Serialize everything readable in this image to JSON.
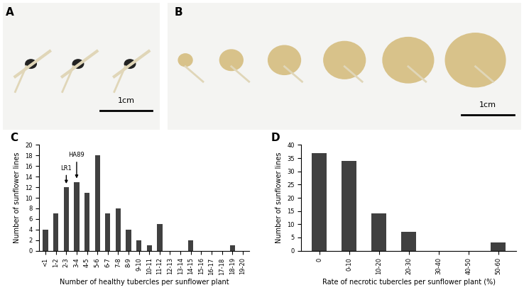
{
  "photos": [
    {
      "label": "A",
      "scale_bar": "1cm"
    },
    {
      "label": "B",
      "scale_bar": "1cm"
    }
  ],
  "chart_data": [
    {
      "type": "bar",
      "title": "C",
      "categories": [
        "<1",
        "1-2",
        "2-3",
        "3-4",
        "4-5",
        "5-6",
        "6-7",
        "7-8",
        "8-9",
        "9-10",
        "10-11",
        "11-12",
        "12-13",
        "13-14",
        "14-15",
        "15-16",
        "16-17",
        "17-18",
        "18-19",
        "19-20"
      ],
      "values": [
        4,
        7,
        12,
        13,
        11,
        18,
        7,
        8,
        4,
        2,
        1,
        5,
        0,
        0,
        2,
        0,
        0,
        0,
        1,
        0
      ],
      "x_label": "Number of healthy tubercles per sunflower plant",
      "y_label": "Number of sunflower lines",
      "ylim": [
        0,
        20
      ],
      "yticks": [
        0,
        2,
        4,
        6,
        8,
        10,
        12,
        14,
        16,
        18,
        20
      ],
      "color": "#404040",
      "annotations": [
        {
          "text": "LR1",
          "category": "2-3"
        },
        {
          "text": "HA89",
          "category": "3-4"
        }
      ]
    },
    {
      "type": "bar",
      "title": "D",
      "categories": [
        "0",
        "0-10",
        "10-20",
        "20-30",
        "30-40",
        "40-50",
        "50-60"
      ],
      "values": [
        37,
        34,
        14,
        7,
        0,
        0,
        3
      ],
      "x_label": "Rate of necrotic tubercles per sunflower plant (%)",
      "y_label": "Number of sunflower lines",
      "ylim": [
        0,
        40
      ],
      "yticks": [
        0,
        5,
        10,
        15,
        20,
        25,
        30,
        35,
        40
      ],
      "color": "#404040"
    }
  ]
}
